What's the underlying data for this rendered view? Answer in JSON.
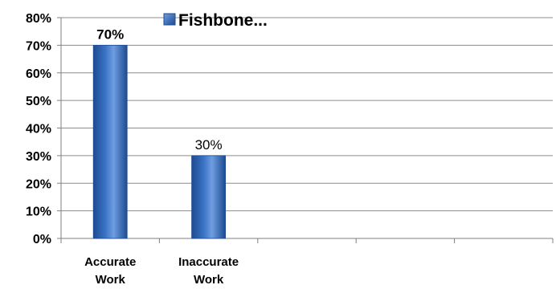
{
  "chart_data": {
    "type": "bar",
    "categories": [
      "Accurate Work",
      "Inaccurate Work"
    ],
    "category_lines": [
      [
        "Accurate",
        "Work"
      ],
      [
        "Inaccurate",
        "Work"
      ]
    ],
    "series": [
      {
        "name": "Fishbone...",
        "values": [
          70,
          30
        ]
      }
    ],
    "data_labels": [
      "70%",
      "30%"
    ],
    "ylim": [
      0,
      80
    ],
    "y_ticks": [
      0,
      10,
      20,
      30,
      40,
      50,
      60,
      70,
      80
    ],
    "y_tick_labels": [
      "0%",
      "10%",
      "20%",
      "30%",
      "40%",
      "50%",
      "60%",
      "70%",
      "80%"
    ],
    "category_slots": 5,
    "grid": true,
    "legend_position": "top",
    "colors": {
      "bar": "#3a72c4",
      "bar_dark": "#1d4b91",
      "bar_light": "#6f9de0",
      "grid": "#8c8c8c",
      "axis": "#7f7f7f"
    }
  }
}
